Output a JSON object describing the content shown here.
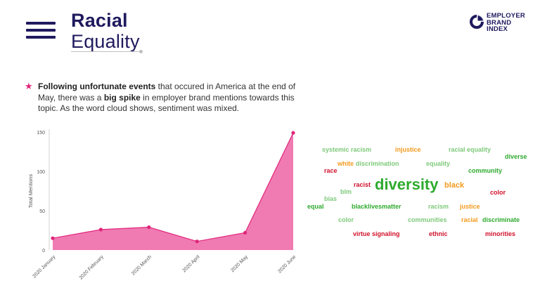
{
  "header": {
    "title_line1": "Racial",
    "title_line2": "Equality",
    "logo_lines": [
      "EMPLOYER",
      "BRAND",
      "INDEX"
    ]
  },
  "bullet": {
    "parts": [
      {
        "text": "Following unfortunate events",
        "bold": true
      },
      {
        "text": " that occured in America at the end of May, there was a ",
        "bold": false
      },
      {
        "text": "big spike",
        "bold": true
      },
      {
        "text": " in employer brand mentions towards this topic. As the word cloud shows, sentiment was mixed.",
        "bold": false
      }
    ]
  },
  "colors": {
    "brand": "#1f1a5e",
    "accent": "#e0267a",
    "area_fill": "#f07ab2",
    "green": "#2eaa2e",
    "light_green": "#7ec97a",
    "orange": "#f39a1c",
    "red": "#d0112b"
  },
  "chart_data": {
    "type": "area",
    "categories": [
      "2020 January",
      "2020 February",
      "2020 March",
      "2020 April",
      "2020 May",
      "2020 June"
    ],
    "series": [
      {
        "values": [
          15,
          26,
          29,
          11,
          22,
          149
        ]
      }
    ],
    "xlabel": "",
    "ylabel": "Total Mentions",
    "ylim": [
      0,
      150
    ],
    "yticks": [
      0,
      50,
      100,
      150
    ],
    "grid": false
  },
  "word_cloud": [
    {
      "text": "systemic racism",
      "color": "light_green",
      "size": 9
    },
    {
      "text": "injustice",
      "color": "orange",
      "size": 9
    },
    {
      "text": "racial equality",
      "color": "light_green",
      "size": 9
    },
    {
      "text": "diverse",
      "color": "green",
      "size": 9
    },
    {
      "text": "white",
      "color": "orange",
      "size": 9
    },
    {
      "text": "discrimination",
      "color": "light_green",
      "size": 9
    },
    {
      "text": "equality",
      "color": "light_green",
      "size": 9
    },
    {
      "text": "race",
      "color": "red",
      "size": 9
    },
    {
      "text": "community",
      "color": "green",
      "size": 9
    },
    {
      "text": "racist",
      "color": "red",
      "size": 9
    },
    {
      "text": "diversity",
      "color": "green",
      "size": 22
    },
    {
      "text": "black",
      "color": "orange",
      "size": 11
    },
    {
      "text": "blm",
      "color": "light_green",
      "size": 9
    },
    {
      "text": "color",
      "color": "red",
      "size": 9
    },
    {
      "text": "bias",
      "color": "light_green",
      "size": 9
    },
    {
      "text": "equal",
      "color": "green",
      "size": 9
    },
    {
      "text": "blacklivesmatter",
      "color": "green",
      "size": 9
    },
    {
      "text": "racism",
      "color": "light_green",
      "size": 9
    },
    {
      "text": "justice",
      "color": "orange",
      "size": 9
    },
    {
      "text": "color",
      "color": "light_green",
      "size": 9
    },
    {
      "text": "communities",
      "color": "light_green",
      "size": 9
    },
    {
      "text": "racial",
      "color": "orange",
      "size": 9
    },
    {
      "text": "discriminate",
      "color": "green",
      "size": 9
    },
    {
      "text": "virtue signaling",
      "color": "red",
      "size": 9
    },
    {
      "text": "ethnic",
      "color": "red",
      "size": 9
    },
    {
      "text": "minorities",
      "color": "red",
      "size": 9
    }
  ]
}
